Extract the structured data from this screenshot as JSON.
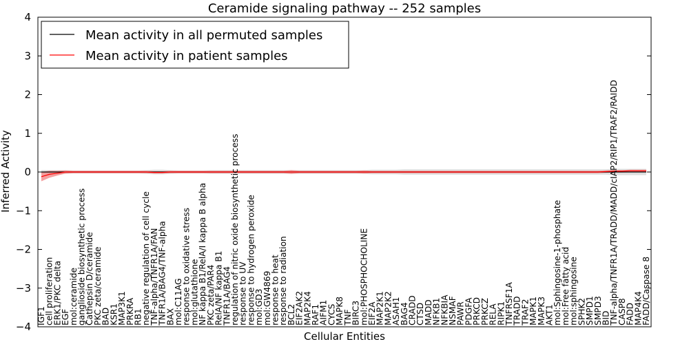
{
  "chart_data": {
    "type": "line",
    "title": "Ceramide signaling pathway -- 252 samples",
    "xlabel": "Cellular Entities",
    "ylabel": "Inferred Activity",
    "ylim": [
      -4,
      4
    ],
    "yticks": [
      "−4",
      "−3",
      "−2",
      "−1",
      "0",
      "1",
      "2",
      "3",
      "4"
    ],
    "grid": false,
    "legend_position": "top-left",
    "categories": [
      "IGF1",
      "cell proliferation",
      "ERK1/PKC delta",
      "EGF",
      "mol:ceramide",
      "ganglioside biosynthetic process",
      "Cathepsin D/ceramide",
      "PKC zeta/ceramide",
      "BAD",
      "KSR1",
      "MAP3K1",
      "PRKRA",
      "RB1",
      "negative regulation of cell cycle",
      "TNF-alpha/TNFR1A/FAN",
      "TNFR1A/BAG4/TNF-alpha",
      "BAX",
      "mol:C11AG",
      "response to oxidative stress",
      "mol:glutathione",
      "NF kappa B1/RelA/I kappa B alpha",
      "PKC zeta/PAR4",
      "RelA/NF kappa B1",
      "TNFR1A/BAG4",
      "regulation of nitric oxide biosynthetic process",
      "response to UV",
      "response to hydrogen peroxide",
      "mol:GD3",
      "mol:GW4869",
      "response to heat",
      "response to radiation",
      "BCL2",
      "EIF2AK2",
      "MAP2K4",
      "RAF1",
      "AIFM1",
      "CYCS",
      "MAPK8",
      "TNF",
      "BIRC3",
      "mol:PHOSPHOCHOLINE",
      "EIF2A",
      "MAP2K1",
      "MAP2K2",
      "ASAH1",
      "BAG4",
      "CRADD",
      "CTSD",
      "MADD",
      "NFKB1",
      "NFKBIA",
      "NSMAF",
      "PAWR",
      "PDGFA",
      "PRKCD",
      "PRKCZ",
      "RELA",
      "RIPK1",
      "TNFRSF1A",
      "TRADD",
      "TRAF2",
      "MAPK1",
      "MAPK3",
      "AKT1",
      "mol:Sphingosine-1-phosphate",
      "mol:Free fatty acid",
      "mol:sphingosine",
      "SPHK2",
      "SMPD1",
      "SMPD3",
      "BID",
      "TNF-alpha/TNFR1A/TRADD/MADD/cIAP2/RIP1/TRAF2/RAIDD",
      "CASP8",
      "FADD",
      "MAP4K4",
      "FADD/Caspase 8"
    ],
    "series": [
      {
        "name": "Mean activity in all permuted samples",
        "color": "#000000",
        "band_color": "#d3d3d3",
        "values": [
          0,
          0,
          0,
          0,
          0,
          0,
          0,
          0,
          0,
          0,
          0,
          0,
          0,
          0,
          0,
          0,
          0,
          0,
          0,
          0,
          0,
          0,
          0,
          0,
          0,
          0,
          0,
          0,
          0,
          0,
          0,
          0,
          0,
          0,
          0,
          0,
          0,
          0,
          0,
          0,
          0,
          0,
          0,
          0,
          0,
          0,
          0,
          0,
          0,
          0,
          0,
          0,
          0,
          0,
          0,
          0,
          0,
          0,
          0,
          0,
          0,
          0,
          0,
          0,
          0,
          0,
          0,
          0,
          0,
          0,
          0,
          0,
          0,
          0,
          0,
          0
        ],
        "band": [
          0.05,
          0.05,
          0.05,
          0.05,
          0.04,
          0.04,
          0.04,
          0.04,
          0.04,
          0.04,
          0.04,
          0.04,
          0.04,
          0.05,
          0.06,
          0.06,
          0.05,
          0.04,
          0.04,
          0.04,
          0.04,
          0.05,
          0.05,
          0.05,
          0.05,
          0.05,
          0.05,
          0.05,
          0.05,
          0.05,
          0.05,
          0.05,
          0.05,
          0.05,
          0.05,
          0.05,
          0.05,
          0.05,
          0.05,
          0.05,
          0.05,
          0.06,
          0.06,
          0.06,
          0.06,
          0.07,
          0.07,
          0.07,
          0.07,
          0.07,
          0.07,
          0.07,
          0.07,
          0.07,
          0.07,
          0.07,
          0.07,
          0.07,
          0.07,
          0.07,
          0.07,
          0.07,
          0.07,
          0.07,
          0.07,
          0.07,
          0.07,
          0.07,
          0.07,
          0.07,
          0.07,
          0.08,
          0.08,
          0.08,
          0.08,
          0.08
        ]
      },
      {
        "name": "Mean activity in patient samples",
        "color": "#ff0000",
        "band_color": "#f08080",
        "values": [
          -0.12,
          -0.06,
          -0.03,
          0,
          0,
          0,
          0,
          0,
          0,
          0,
          0,
          0,
          0,
          0,
          -0.01,
          -0.01,
          0,
          0,
          0,
          0,
          0,
          0,
          0,
          0,
          0,
          0,
          0,
          0,
          0,
          0,
          0,
          0,
          0,
          0,
          0,
          0,
          0,
          0,
          0,
          0,
          0,
          0,
          0,
          0,
          0,
          0,
          0,
          0,
          0,
          0,
          0,
          0,
          0,
          0,
          0,
          0,
          0,
          0,
          0,
          0,
          0,
          0,
          0,
          0,
          0,
          0,
          0,
          0,
          0,
          0,
          0.01,
          0.02,
          0.02,
          0.03,
          0.03,
          0.03
        ],
        "band": [
          0.12,
          0.09,
          0.06,
          0.04,
          0.03,
          0.03,
          0.03,
          0.03,
          0.03,
          0.03,
          0.03,
          0.03,
          0.03,
          0.03,
          0.03,
          0.03,
          0.03,
          0.03,
          0.03,
          0.03,
          0.03,
          0.03,
          0.03,
          0.03,
          0.03,
          0.03,
          0.03,
          0.03,
          0.03,
          0.03,
          0.03,
          0.05,
          0.03,
          0.03,
          0.03,
          0.03,
          0.03,
          0.03,
          0.03,
          0.03,
          0.04,
          0.03,
          0.03,
          0.03,
          0.03,
          0.03,
          0.03,
          0.03,
          0.03,
          0.03,
          0.03,
          0.03,
          0.03,
          0.03,
          0.03,
          0.03,
          0.03,
          0.03,
          0.03,
          0.03,
          0.03,
          0.03,
          0.03,
          0.03,
          0.03,
          0.03,
          0.03,
          0.03,
          0.03,
          0.03,
          0.03,
          0.03,
          0.03,
          0.03,
          0.03,
          0.03
        ]
      }
    ]
  }
}
